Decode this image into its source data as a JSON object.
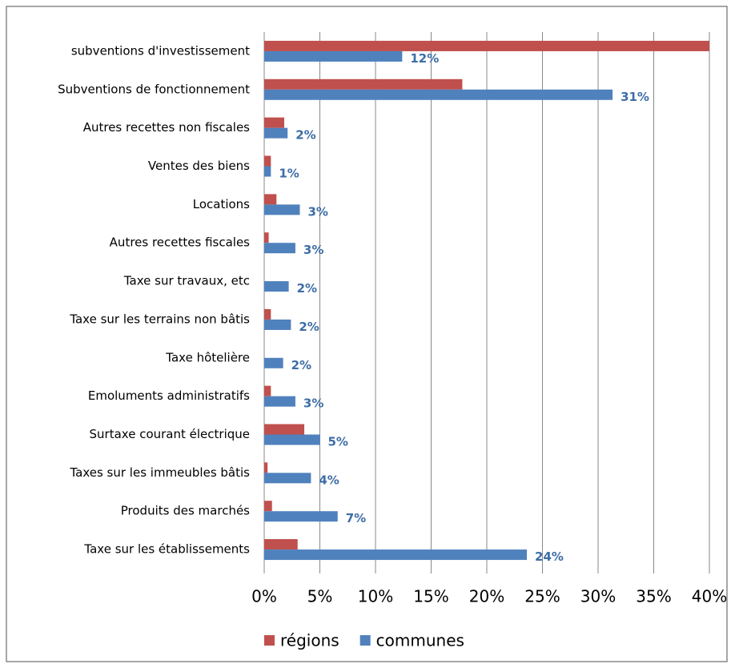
{
  "chart_data": {
    "type": "bar",
    "orientation": "horizontal",
    "categories": [
      "subventions d'investissement",
      "Subventions de fonctionnement",
      "Autres recettes non fiscales",
      "Ventes des biens",
      "Locations",
      "Autres recettes fiscales",
      "Taxe sur travaux, etc",
      "Taxe sur les terrains non bâtis",
      "Taxe hôtelière",
      "Emoluments administratifs",
      "Surtaxe courant électrique",
      "Taxes sur les immeubles bâtis",
      "Produits des marchés",
      "Taxe sur les établissements"
    ],
    "series": [
      {
        "name": "régions",
        "color": "#c0504d",
        "values": [
          40,
          17.8,
          1.8,
          0.6,
          1.1,
          0.4,
          0,
          0.6,
          0,
          0.6,
          3.6,
          0.3,
          0.7,
          3.0
        ]
      },
      {
        "name": "communes",
        "color": "#4f81bd",
        "values": [
          12.4,
          31.3,
          2.1,
          0.6,
          3.2,
          2.8,
          2.2,
          2.4,
          1.7,
          2.8,
          5.0,
          4.2,
          6.6,
          23.6
        ],
        "value_labels": [
          "12%",
          "31%",
          "2%",
          "1%",
          "3%",
          "3%",
          "2%",
          "2%",
          "2%",
          "3%",
          "5%",
          "4%",
          "7%",
          "24%"
        ]
      }
    ],
    "xlim": [
      0,
      40
    ],
    "xticks": [
      {
        "value": 0,
        "label": "0%"
      },
      {
        "value": 5,
        "label": "5%"
      },
      {
        "value": 10,
        "label": "10%"
      },
      {
        "value": 15,
        "label": "15%"
      },
      {
        "value": 20,
        "label": "20%"
      },
      {
        "value": 25,
        "label": "25%"
      },
      {
        "value": 30,
        "label": "30%"
      },
      {
        "value": 35,
        "label": "35%"
      },
      {
        "value": 40,
        "label": "40%"
      }
    ],
    "grid": true,
    "legend": "bottom"
  }
}
